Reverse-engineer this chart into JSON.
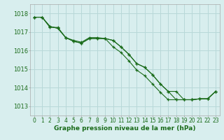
{
  "title": "Graphe pression niveau de la mer (hPa)",
  "background_color": "#d8eeee",
  "grid_color": "#b8d8d8",
  "line_color": "#1a6b1a",
  "x_labels": [
    "0",
    "1",
    "2",
    "3",
    "4",
    "5",
    "6",
    "7",
    "8",
    "9",
    "10",
    "11",
    "12",
    "13",
    "14",
    "15",
    "16",
    "17",
    "18",
    "19",
    "20",
    "21",
    "22",
    "23"
  ],
  "ylim": [
    1012.5,
    1018.5
  ],
  "yticks": [
    1013,
    1014,
    1015,
    1016,
    1017,
    1018
  ],
  "series1": [
    1017.8,
    1017.8,
    1017.3,
    1017.2,
    1016.7,
    1016.5,
    1016.4,
    1016.65,
    1016.65,
    1016.65,
    1016.55,
    1016.2,
    1015.8,
    1015.3,
    1015.1,
    1014.7,
    1014.2,
    1013.8,
    1013.8,
    1013.35,
    1013.35,
    1013.4,
    1013.4,
    1013.8
  ],
  "series2": [
    1017.8,
    1017.8,
    1017.3,
    1017.2,
    1016.7,
    1016.5,
    1016.4,
    1016.65,
    1016.65,
    1016.65,
    1016.55,
    1016.2,
    1015.8,
    1015.3,
    1015.1,
    1014.7,
    1014.2,
    1013.8,
    1013.35,
    1013.35,
    1013.35,
    1013.4,
    1013.4,
    1013.8
  ],
  "series3": [
    1017.8,
    1017.8,
    1017.25,
    1017.25,
    1016.7,
    1016.55,
    1016.45,
    1016.7,
    1016.7,
    1016.65,
    1016.2,
    1015.9,
    1015.45,
    1014.95,
    1014.65,
    1014.2,
    1013.75,
    1013.35,
    1013.35,
    1013.35,
    1013.35,
    1013.4,
    1013.4,
    1013.8
  ],
  "ylabel_fontsize": 6,
  "xlabel_fontsize": 5.5,
  "title_fontsize": 6.5
}
